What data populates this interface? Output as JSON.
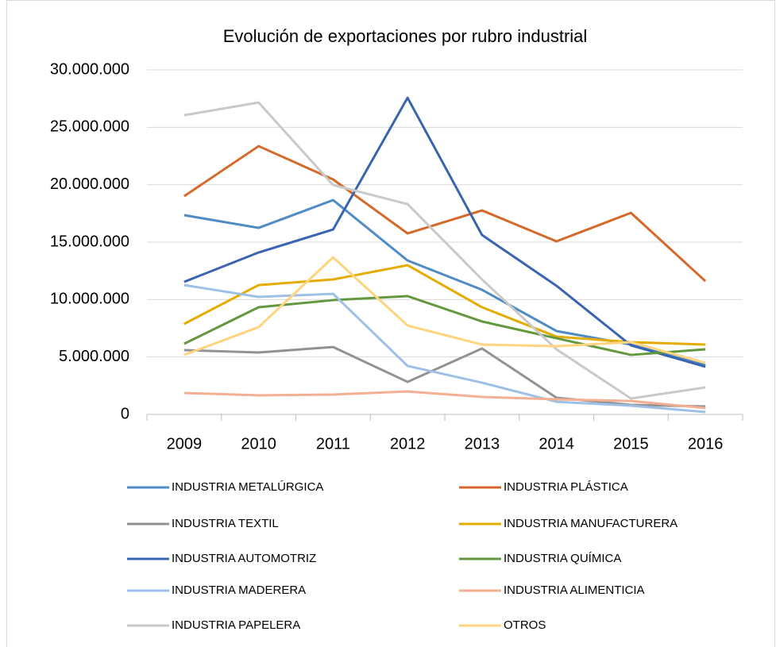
{
  "chart_data": {
    "type": "line",
    "title": "Evolución de exportaciones por rubro industrial",
    "categories": [
      "2009",
      "2010",
      "2011",
      "2012",
      "2013",
      "2014",
      "2015",
      "2016"
    ],
    "ylim": [
      0,
      30000000
    ],
    "yticks": [
      0,
      {
        "value": 5000000,
        "label": "5.000.000"
      },
      {
        "value": 10000000,
        "label": "10.000.000"
      },
      {
        "value": 15000000,
        "label": "15.000.000"
      },
      {
        "value": 20000000,
        "label": "20.000.000"
      },
      {
        "value": 25000000,
        "label": "25.000.000"
      },
      {
        "value": 30000000,
        "label": "30.000.000"
      }
    ],
    "grid": true,
    "series": [
      {
        "name": "INDUSTRIA METALÚRGICA",
        "color": "#4f8bc4",
        "values": [
          17350000,
          16240000,
          18660000,
          13400000,
          10850000,
          7260000,
          6080000,
          4280000
        ]
      },
      {
        "name": "INDUSTRIA PLÁSTICA",
        "color": "#d4692a",
        "values": [
          19000000,
          23360000,
          20460000,
          15760000,
          17760000,
          15070000,
          17550000,
          11600000
        ]
      },
      {
        "name": "INDUSTRIA TEXTIL",
        "color": "#929292",
        "values": [
          5600000,
          5390000,
          5870000,
          2830000,
          5740000,
          1450000,
          830000,
          690000
        ]
      },
      {
        "name": "INDUSTRIA MANUFACTURERA",
        "color": "#e5ac00",
        "values": [
          7880000,
          11260000,
          11750000,
          12990000,
          9330000,
          6770000,
          6290000,
          6080000
        ]
      },
      {
        "name": "INDUSTRIA AUTOMOTRIZ",
        "color": "#3b64b0",
        "values": [
          11540000,
          14100000,
          16100000,
          27570000,
          15620000,
          11200000,
          6010000,
          4150000
        ]
      },
      {
        "name": "INDUSTRIA QUÍMICA",
        "color": "#62993e",
        "values": [
          6150000,
          9330000,
          9950000,
          10300000,
          8090000,
          6630000,
          5180000,
          5670000
        ]
      },
      {
        "name": "INDUSTRIA MADERERA",
        "color": "#9dc0e6",
        "values": [
          11260000,
          10230000,
          10500000,
          4220000,
          2760000,
          1100000,
          760000,
          210000
        ]
      },
      {
        "name": "INDUSTRIA ALIMENTICIA",
        "color": "#f4ae92",
        "values": [
          1870000,
          1660000,
          1730000,
          2000000,
          1520000,
          1310000,
          1170000,
          550000
        ]
      },
      {
        "name": "INDUSTRIA PAPELERA",
        "color": "#c9c9c9",
        "values": [
          26050000,
          27160000,
          19970000,
          18310000,
          11750000,
          5670000,
          1380000,
          2350000
        ]
      },
      {
        "name": "OTROS",
        "color": "#ffd47f",
        "values": [
          5180000,
          7600000,
          13680000,
          7740000,
          6080000,
          5940000,
          6290000,
          4490000
        ]
      }
    ]
  }
}
